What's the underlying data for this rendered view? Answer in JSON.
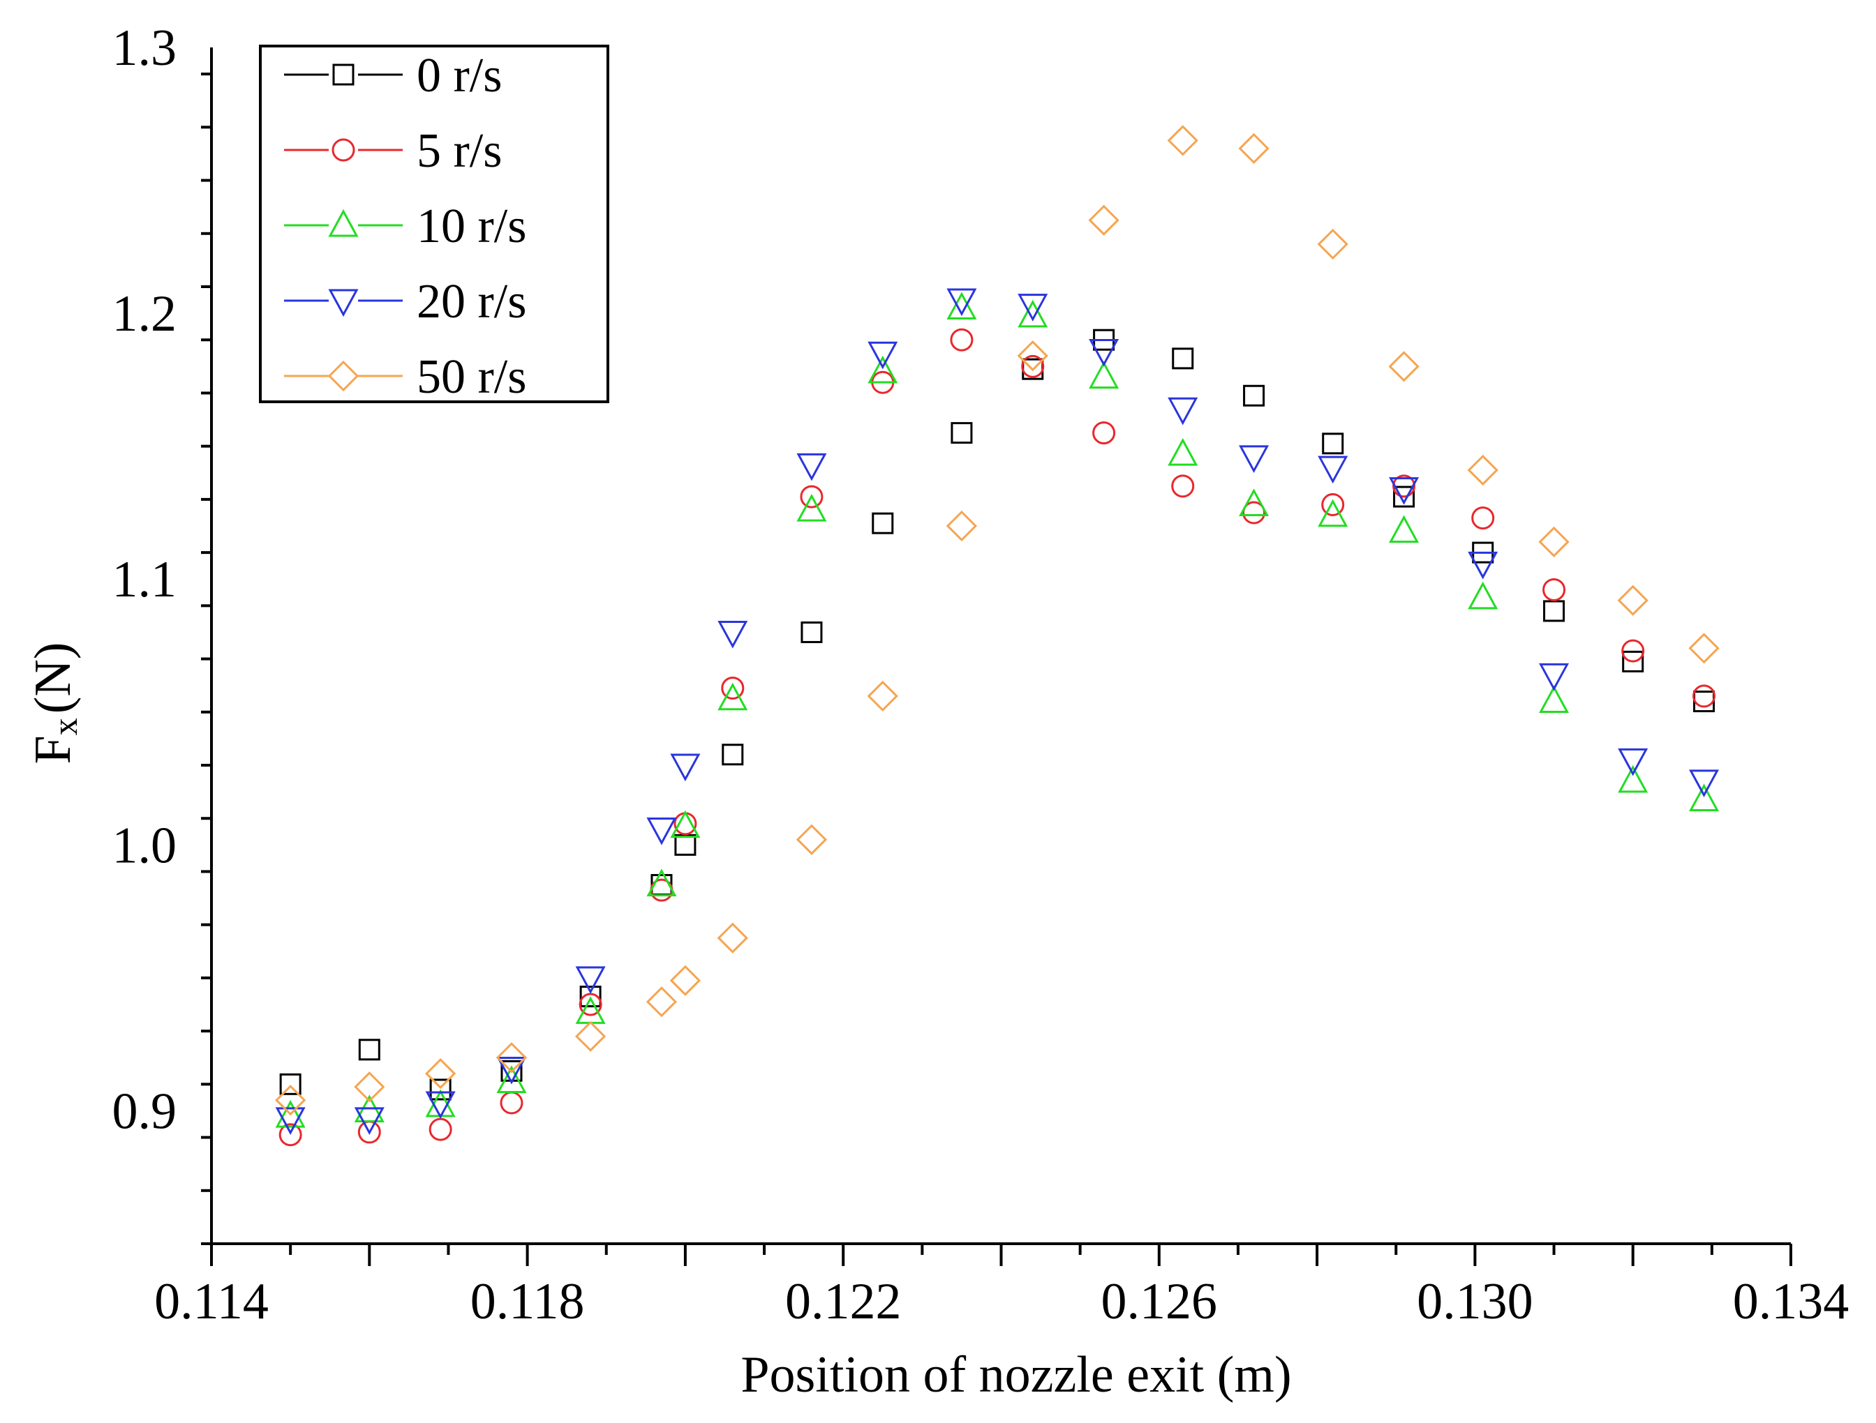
{
  "chart_data": {
    "type": "scatter",
    "title": "",
    "xlabel": "Position of nozzle exit (m)",
    "ylabel": "F",
    "ylabel_subscript": "x",
    "ylabel_unit": "(N)",
    "xlim": [
      0.114,
      0.134
    ],
    "ylim": [
      0.85,
      1.3
    ],
    "x_ticks": [
      {
        "value": 0.114,
        "label": "0.114"
      },
      {
        "value": 0.118,
        "label": "0.118"
      },
      {
        "value": 0.122,
        "label": "0.122"
      },
      {
        "value": 0.126,
        "label": "0.126"
      },
      {
        "value": 0.13,
        "label": "0.130"
      },
      {
        "value": 0.134,
        "label": "0.134"
      }
    ],
    "y_ticks": [
      {
        "value": 0.9,
        "label": "0.9"
      },
      {
        "value": 1.0,
        "label": "1.0"
      },
      {
        "value": 1.1,
        "label": "1.1"
      },
      {
        "value": 1.2,
        "label": "1.2"
      },
      {
        "value": 1.3,
        "label": "1.3"
      }
    ],
    "grid": false,
    "legend_position": "top-left",
    "x": [
      0.115,
      0.116,
      0.1169,
      0.1178,
      0.1188,
      0.1197,
      0.12,
      0.1206,
      0.1216,
      0.1225,
      0.1235,
      0.1244,
      0.1253,
      0.1263,
      0.1272,
      0.1282,
      0.1291,
      0.1301,
      0.131,
      0.132,
      0.1329
    ],
    "series": [
      {
        "name": "0 r/s",
        "marker": "square",
        "color": "#000000",
        "values": [
          0.91,
          0.923,
          0.908,
          0.915,
          0.943,
          0.985,
          1.0,
          1.034,
          1.08,
          1.121,
          1.155,
          1.179,
          1.19,
          1.183,
          1.169,
          1.151,
          1.131,
          1.11,
          1.088,
          1.069,
          1.054
        ]
      },
      {
        "name": "5 r/s",
        "marker": "circle",
        "color": "#e8282d",
        "values": [
          0.891,
          0.892,
          0.893,
          0.903,
          0.94,
          0.983,
          1.008,
          1.059,
          1.131,
          1.174,
          1.19,
          1.18,
          1.155,
          1.135,
          1.125,
          1.128,
          1.135,
          1.123,
          1.096,
          1.073,
          1.056
        ]
      },
      {
        "name": "10 r/s",
        "marker": "triangle-up",
        "color": "#22dd22",
        "values": [
          0.898,
          0.9,
          0.902,
          0.911,
          0.937,
          0.985,
          1.007,
          1.055,
          1.126,
          1.178,
          1.202,
          1.199,
          1.176,
          1.147,
          1.128,
          1.124,
          1.118,
          1.093,
          1.054,
          1.024,
          1.017
        ]
      },
      {
        "name": "20 r/s",
        "marker": "triangle-down",
        "color": "#2a35dd",
        "values": [
          0.897,
          0.897,
          0.903,
          0.916,
          0.95,
          1.006,
          1.03,
          1.08,
          1.143,
          1.185,
          1.205,
          1.203,
          1.186,
          1.164,
          1.146,
          1.142,
          1.134,
          1.106,
          1.064,
          1.032,
          1.024
        ]
      },
      {
        "name": "50 r/s",
        "marker": "diamond",
        "color": "#f5a550",
        "values": [
          0.904,
          0.909,
          0.914,
          0.92,
          0.928,
          0.941,
          0.949,
          0.965,
          1.002,
          1.056,
          1.12,
          1.184,
          1.235,
          1.265,
          1.262,
          1.226,
          1.18,
          1.141,
          1.114,
          1.092,
          1.074
        ]
      }
    ]
  }
}
